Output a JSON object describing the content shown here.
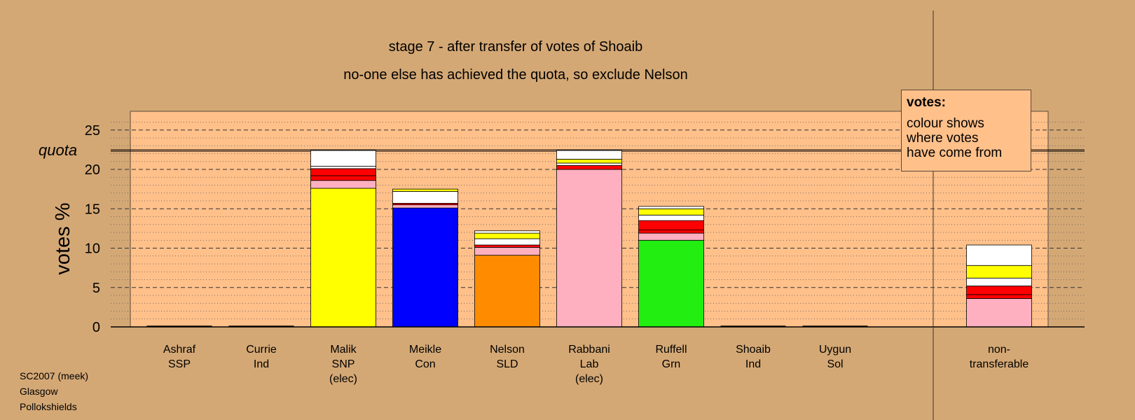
{
  "chart_data": {
    "type": "bar",
    "stacked": true,
    "title": "stage 7 - after transfer of votes of Shoaib",
    "subtitle": "no-one else has achieved the quota, so exclude Nelson",
    "ylabel": "votes %",
    "ylim": [
      0,
      27
    ],
    "yticks": [
      0,
      5,
      10,
      15,
      20,
      25
    ],
    "quota_label": "quota",
    "quota": 22.4,
    "grid": true,
    "categories": [
      {
        "lines": [
          "Ashraf",
          "SSP"
        ],
        "values": []
      },
      {
        "lines": [
          "Currie",
          "Ind"
        ],
        "values": []
      },
      {
        "lines": [
          "Malik",
          "SNP",
          "(elec)"
        ],
        "values": [
          {
            "color": "#ffff00",
            "value": 17.6
          },
          {
            "color": "#ffb0c0",
            "value": 1.0
          },
          {
            "color": "#ff0000",
            "value": 0.6
          },
          {
            "color": "#ff0000",
            "value": 0.9
          },
          {
            "color": "#ffffff",
            "value": 0.3
          },
          {
            "color": "#ffffff",
            "value": 2.0
          }
        ]
      },
      {
        "lines": [
          "Meikle",
          "Con"
        ],
        "values": [
          {
            "color": "#0000ff",
            "value": 15.1
          },
          {
            "color": "#ffb0c0",
            "value": 0.4
          },
          {
            "color": "#ff0000",
            "value": 0.2
          },
          {
            "color": "#ffffff",
            "value": 1.5
          },
          {
            "color": "#ffff00",
            "value": 0.3
          }
        ]
      },
      {
        "lines": [
          "Nelson",
          "SLD"
        ],
        "values": [
          {
            "color": "#ff8c00",
            "value": 9.1
          },
          {
            "color": "#ffb0c0",
            "value": 1.0
          },
          {
            "color": "#ff0000",
            "value": 0.3
          },
          {
            "color": "#ffffff",
            "value": 0.8
          },
          {
            "color": "#ffff00",
            "value": 0.7
          },
          {
            "color": "#ffffff",
            "value": 0.3
          }
        ]
      },
      {
        "lines": [
          "Rabbani",
          "Lab",
          "(elec)"
        ],
        "values": [
          {
            "color": "#ffb0c0",
            "value": 20.0
          },
          {
            "color": "#ff0000",
            "value": 0.5
          },
          {
            "color": "#ffffff",
            "value": 0.3
          },
          {
            "color": "#ffff00",
            "value": 0.5
          },
          {
            "color": "#ffffff",
            "value": 1.1
          }
        ]
      },
      {
        "lines": [
          "Ruffell",
          "Grn"
        ],
        "values": [
          {
            "color": "#22ee11",
            "value": 11.0
          },
          {
            "color": "#ffb0c0",
            "value": 0.9
          },
          {
            "color": "#ff0000",
            "value": 0.4
          },
          {
            "color": "#ff0000",
            "value": 1.2
          },
          {
            "color": "#ffffff",
            "value": 0.7
          },
          {
            "color": "#ffff00",
            "value": 0.8
          },
          {
            "color": "#ffffff",
            "value": 0.3
          }
        ]
      },
      {
        "lines": [
          "Shoaib",
          "Ind"
        ],
        "values": []
      },
      {
        "lines": [
          "Uygun",
          "Sol"
        ],
        "values": []
      },
      {
        "lines": [
          "non-",
          "transferable"
        ],
        "values": [
          {
            "color": "#ffb0c0",
            "value": 3.6
          },
          {
            "color": "#ff0000",
            "value": 0.5
          },
          {
            "color": "#ff0000",
            "value": 1.1
          },
          {
            "color": "#ffffff",
            "value": 1.0
          },
          {
            "color": "#ffff00",
            "value": 1.6
          },
          {
            "color": "#ffffff",
            "value": 2.6
          }
        ]
      }
    ]
  },
  "legend": {
    "title": "votes:",
    "body": "colour shows\nwhere votes\nhave come from"
  },
  "footer": {
    "line1": "SC2007 (meek)",
    "line2": "Glasgow",
    "line3": "Pollokshields"
  }
}
